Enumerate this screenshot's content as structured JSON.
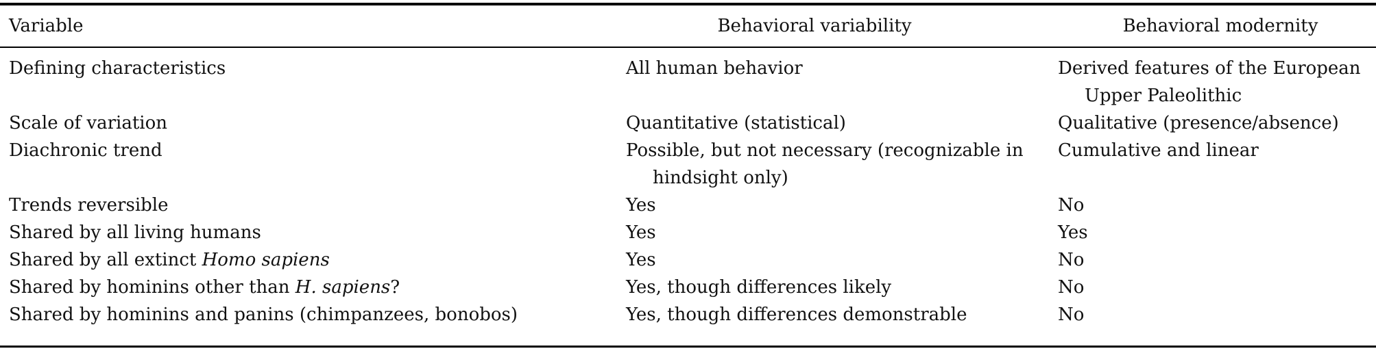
{
  "table": {
    "headers": [
      "Variable",
      "Behavioral variability",
      "Behavioral modernity"
    ],
    "rows": [
      {
        "variable": "Defining characteristics",
        "variability": "All human behavior",
        "modernity": "Derived features of the European Upper Paleolithic"
      },
      {
        "variable": "Scale of variation",
        "variability": "Quantitative (statistical)",
        "modernity": "Qualitative (presence/absence)"
      },
      {
        "variable": "Diachronic trend",
        "variability": "Possible, but not necessary (recognizable in hindsight only)",
        "modernity": "Cumulative and linear"
      },
      {
        "variable": "Trends reversible",
        "variability": "Yes",
        "modernity": "No"
      },
      {
        "variable": "Shared by all living humans",
        "variability": "Yes",
        "modernity": "Yes"
      },
      {
        "variable_prefix": "Shared by all extinct ",
        "variable_italic": "Homo sapiens",
        "variable_suffix": "",
        "variability": "Yes",
        "modernity": "No"
      },
      {
        "variable_prefix": "Shared by hominins other than ",
        "variable_italic": "H. sapiens",
        "variable_suffix": "?",
        "variability": "Yes, though differences likely",
        "modernity": "No"
      },
      {
        "variable": "Shared by hominins and panins (chimpanzees, bonobos)",
        "variability": "Yes, though differences demonstrable",
        "modernity": "No"
      }
    ]
  }
}
